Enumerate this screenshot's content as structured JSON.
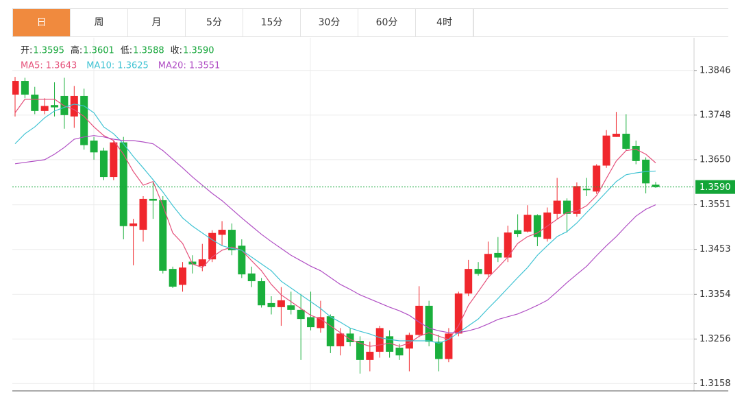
{
  "tabs": [
    "日",
    "周",
    "月",
    "5分",
    "15分",
    "30分",
    "60分",
    "4时"
  ],
  "selected_tab": 0,
  "readout": {
    "labels": [
      "开:",
      "高:",
      "低:",
      "收:"
    ],
    "values": [
      "1.3595",
      "1.3601",
      "1.3588",
      "1.3590"
    ],
    "label_color": "#222222",
    "value_color": "#13a538"
  },
  "chart_data": {
    "type": "candlestick",
    "up_color": "#f0272d",
    "down_color": "#1aaf3c",
    "open": [
      1.3793,
      1.3823,
      1.3793,
      1.3757,
      1.377,
      1.379,
      1.3745,
      1.379,
      1.3692,
      1.367,
      1.3612,
      1.3688,
      1.3504,
      1.3496,
      1.3564,
      1.3561,
      1.341,
      1.3375,
      1.3426,
      1.3416,
      1.3431,
      1.3485,
      1.3496,
      1.3461,
      1.34,
      1.3383,
      1.3335,
      1.3326,
      1.333,
      1.332,
      1.3304,
      1.328,
      1.3306,
      1.324,
      1.3268,
      1.3252,
      1.321,
      1.3228,
      1.3262,
      1.3237,
      1.3235,
      1.3265,
      1.3329,
      1.325,
      1.3212,
      1.3268,
      1.3356,
      1.341,
      1.3398,
      1.3445,
      1.3435,
      1.3495,
      1.3492,
      1.3528,
      1.3476,
      1.3531,
      1.356,
      1.3531,
      1.3586,
      1.358,
      1.3637,
      1.37,
      1.3707,
      1.368,
      1.365,
      1.3595
    ],
    "high": [
      1.3832,
      1.383,
      1.381,
      1.3785,
      1.382,
      1.383,
      1.3812,
      1.3806,
      1.37,
      1.3676,
      1.3692,
      1.37,
      1.352,
      1.357,
      1.36,
      1.357,
      1.3415,
      1.3425,
      1.344,
      1.3465,
      1.3495,
      1.3515,
      1.351,
      1.3475,
      1.3415,
      1.339,
      1.335,
      1.337,
      1.336,
      1.3355,
      1.336,
      1.334,
      1.331,
      1.328,
      1.328,
      1.3262,
      1.325,
      1.3285,
      1.3275,
      1.3245,
      1.327,
      1.3372,
      1.334,
      1.3265,
      1.328,
      1.336,
      1.343,
      1.3425,
      1.347,
      1.348,
      1.3505,
      1.353,
      1.355,
      1.353,
      1.3545,
      1.361,
      1.3565,
      1.36,
      1.361,
      1.364,
      1.3715,
      1.3755,
      1.375,
      1.3692,
      1.3655,
      1.3601
    ],
    "low": [
      1.3745,
      1.3785,
      1.375,
      1.375,
      1.3745,
      1.3718,
      1.372,
      1.3672,
      1.365,
      1.3605,
      1.3605,
      1.3475,
      1.3418,
      1.347,
      1.352,
      1.34,
      1.3368,
      1.336,
      1.34,
      1.3405,
      1.3425,
      1.346,
      1.344,
      1.339,
      1.337,
      1.3325,
      1.331,
      1.3285,
      1.331,
      1.321,
      1.3275,
      1.327,
      1.3225,
      1.322,
      1.324,
      1.318,
      1.3185,
      1.3215,
      1.3215,
      1.321,
      1.3185,
      1.326,
      1.324,
      1.3185,
      1.3205,
      1.3262,
      1.335,
      1.3395,
      1.3393,
      1.3425,
      1.3425,
      1.348,
      1.349,
      1.346,
      1.347,
      1.352,
      1.349,
      1.3525,
      1.357,
      1.3575,
      1.3632,
      1.37,
      1.367,
      1.364,
      1.3576,
      1.3588
    ],
    "close": [
      1.3823,
      1.3793,
      1.3757,
      1.3768,
      1.3765,
      1.3748,
      1.379,
      1.3682,
      1.3666,
      1.3612,
      1.3688,
      1.3504,
      1.351,
      1.3564,
      1.356,
      1.3406,
      1.3371,
      1.3413,
      1.342,
      1.3431,
      1.3489,
      1.3496,
      1.3451,
      1.3398,
      1.3383,
      1.333,
      1.3326,
      1.3341,
      1.332,
      1.33,
      1.3282,
      1.3304,
      1.324,
      1.3268,
      1.3249,
      1.321,
      1.3228,
      1.328,
      1.3228,
      1.322,
      1.3265,
      1.3329,
      1.325,
      1.3212,
      1.3268,
      1.3356,
      1.341,
      1.3399,
      1.3443,
      1.3435,
      1.349,
      1.3487,
      1.3529,
      1.348,
      1.3534,
      1.356,
      1.3531,
      1.3592,
      1.3583,
      1.3637,
      1.3703,
      1.3707,
      1.3674,
      1.3647,
      1.3598,
      1.359
    ],
    "series": [
      {
        "name": "MA5:",
        "color": "#e5507a",
        "values": [
          1.3753,
          1.3783,
          1.3783,
          1.3783,
          1.3783,
          1.3768,
          1.376,
          1.3745,
          1.3722,
          1.3703,
          1.3692,
          1.3662,
          1.3624,
          1.3594,
          1.3602,
          1.3549,
          1.3489,
          1.3466,
          1.3421,
          1.3413,
          1.3436,
          1.3451,
          1.3458,
          1.3451,
          1.3428,
          1.3406,
          1.3376,
          1.3353,
          1.3338,
          1.3323,
          1.3308,
          1.33,
          1.3285,
          1.327,
          1.3255,
          1.3247,
          1.324,
          1.3243,
          1.3247,
          1.324,
          1.3247,
          1.3262,
          1.327,
          1.3262,
          1.3255,
          1.3285,
          1.333,
          1.336,
          1.3391,
          1.3413,
          1.3436,
          1.3466,
          1.3481,
          1.3489,
          1.3504,
          1.3519,
          1.3534,
          1.3537,
          1.3549,
          1.3571,
          1.3609,
          1.3647,
          1.367,
          1.3673,
          1.3662,
          1.3643
        ]
      },
      {
        "name": "MA10:",
        "color": "#3fc3d3",
        "values": [
          1.3685,
          1.3707,
          1.3722,
          1.3742,
          1.3757,
          1.3765,
          1.3772,
          1.3768,
          1.3753,
          1.3722,
          1.3707,
          1.3685,
          1.3657,
          1.3632,
          1.3606,
          1.3579,
          1.3549,
          1.3522,
          1.3504,
          1.3489,
          1.3474,
          1.3461,
          1.3455,
          1.3451,
          1.3436,
          1.3421,
          1.3406,
          1.3383,
          1.3368,
          1.3353,
          1.3338,
          1.3323,
          1.3305,
          1.3293,
          1.328,
          1.3273,
          1.3267,
          1.3259,
          1.3255,
          1.3252,
          1.3252,
          1.3252,
          1.3252,
          1.3247,
          1.3255,
          1.327,
          1.3285,
          1.33,
          1.3323,
          1.3345,
          1.3368,
          1.3391,
          1.3413,
          1.344,
          1.3461,
          1.3481,
          1.3492,
          1.3511,
          1.3534,
          1.3556,
          1.3579,
          1.3602,
          1.3617,
          1.3621,
          1.3624,
          1.3625
        ]
      },
      {
        "name": "MA20:",
        "color": "#b04ec4",
        "values": [
          1.3641,
          1.3644,
          1.3647,
          1.365,
          1.3662,
          1.3677,
          1.3695,
          1.37,
          1.3703,
          1.37,
          1.3695,
          1.3692,
          1.3692,
          1.3689,
          1.3685,
          1.367,
          1.3651,
          1.3632,
          1.3612,
          1.3594,
          1.3576,
          1.356,
          1.3541,
          1.3522,
          1.3504,
          1.3486,
          1.347,
          1.3455,
          1.344,
          1.3428,
          1.3416,
          1.3406,
          1.3391,
          1.3376,
          1.3365,
          1.3353,
          1.3344,
          1.3335,
          1.3326,
          1.3318,
          1.3308,
          1.3293,
          1.328,
          1.3274,
          1.327,
          1.327,
          1.3274,
          1.328,
          1.3289,
          1.3299,
          1.3305,
          1.3311,
          1.332,
          1.333,
          1.3341,
          1.336,
          1.338,
          1.3398,
          1.3416,
          1.3439,
          1.3461,
          1.3481,
          1.3504,
          1.3526,
          1.3541,
          1.3551
        ]
      }
    ],
    "ylim": [
      1.3142,
      1.3918
    ],
    "yticks": [
      1.3846,
      1.3748,
      {
        "value": 1.365,
        "label": "1.3650"
      },
      1.3551,
      1.3453,
      1.3354,
      1.3256,
      1.3158
    ],
    "grid": true,
    "last_price": {
      "value": 1.359,
      "label": "1.3590",
      "color": "#13a538"
    }
  }
}
